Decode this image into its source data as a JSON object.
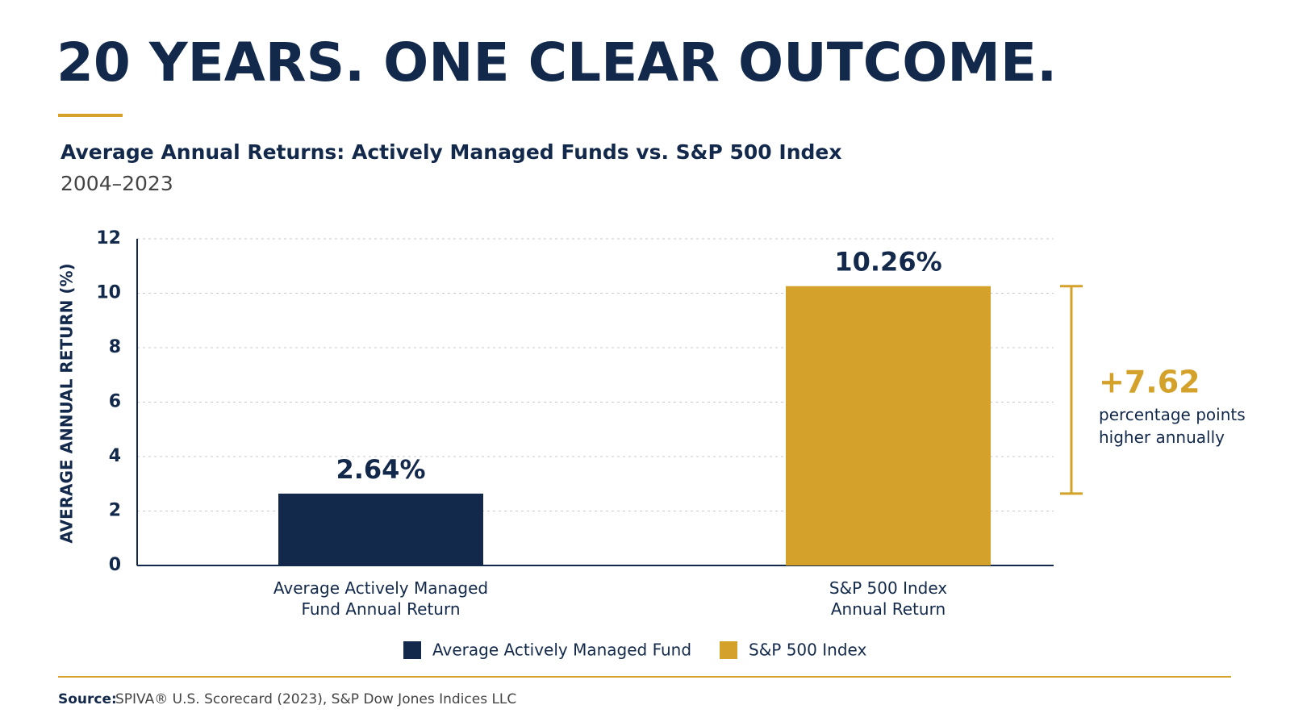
{
  "chart_data": {
    "type": "bar",
    "title": "20 YEARS. ONE CLEAR OUTCOME.",
    "subtitle": "Average Annual Returns: Actively Managed Funds vs. S&P 500 Index",
    "period": "2004–2023",
    "y_label": "AVERAGE ANNUAL RETURN (%)",
    "categories": [
      "Average Actively Managed\nFund Annual Return",
      "S&P 500 Index\nAnnual Return"
    ],
    "series": [
      {
        "name": "Average Actively Managed Fund",
        "color": "#13294b",
        "values": [
          2.64,
          null
        ],
        "value_labels": [
          "2.64%",
          null
        ]
      },
      {
        "name": "S&P 500 Index",
        "color": "#d4a22a",
        "values": [
          null,
          10.26
        ],
        "value_labels": [
          null,
          "10.26%"
        ]
      }
    ],
    "ylim": [
      0,
      12
    ],
    "yticks": [
      0,
      2,
      4,
      6,
      8,
      10,
      12
    ],
    "grid": true,
    "annotation": {
      "value": 7.62,
      "label": "+7.62",
      "text": "percentage points\nhigher annually"
    },
    "source_label": "Source:",
    "source": "SPIVA® U.S. Scorecard (2023), S&P Dow Jones Indices LLC"
  }
}
